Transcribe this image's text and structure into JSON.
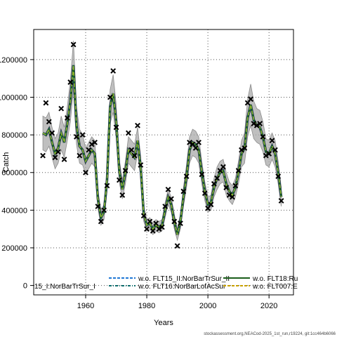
{
  "chart_data": {
    "type": "line",
    "xlabel": "Years",
    "ylabel": "Catch",
    "xlim": [
      1943,
      2028
    ],
    "ylim": [
      -50000,
      1360000
    ],
    "x_ticks": [
      1960,
      1980,
      2000,
      2020
    ],
    "y_ticks": [
      0,
      200000,
      400000,
      600000,
      800000,
      1000000,
      1200000
    ],
    "y_tick_labels": [
      "0",
      "200000",
      "400000",
      "600000",
      "800000",
      "1000000",
      "1200000"
    ],
    "grid": true,
    "legend_position": "bottom",
    "legend": [
      {
        "label": "15_I:NorBarTrSur_I",
        "color": "#1a1a1a",
        "style": "dotted"
      },
      {
        "label": "w.o. FLT15_II:NorBarTrSur_II",
        "color": "#1f77d4",
        "style": "dashed"
      },
      {
        "label": "w.o. FLT16:NorBarLofAcSur",
        "color": "#0d6e6e",
        "style": "dashdot"
      },
      {
        "label": "w.o. FLT18:Ru",
        "color": "#1a5e1a",
        "style": "solid"
      },
      {
        "label": "w.o. FLT007:E",
        "color": "#c8a000",
        "style": "dashed"
      }
    ],
    "observed": {
      "x": [
        1946,
        1947,
        1948,
        1949,
        1950,
        1951,
        1952,
        1953,
        1954,
        1955,
        1956,
        1957,
        1958,
        1959,
        1960,
        1961,
        1962,
        1963,
        1964,
        1965,
        1966,
        1967,
        1968,
        1969,
        1970,
        1971,
        1972,
        1973,
        1974,
        1975,
        1976,
        1977,
        1978,
        1979,
        1980,
        1981,
        1982,
        1983,
        1984,
        1985,
        1986,
        1987,
        1988,
        1989,
        1990,
        1991,
        1992,
        1993,
        1994,
        1995,
        1996,
        1997,
        1998,
        1999,
        2000,
        2001,
        2002,
        2003,
        2004,
        2005,
        2006,
        2007,
        2008,
        2009,
        2010,
        2011,
        2012,
        2013,
        2014,
        2015,
        2016,
        2017,
        2018,
        2019,
        2020,
        2021,
        2022,
        2023,
        2024
      ],
      "y": [
        690000,
        970000,
        870000,
        810000,
        680000,
        710000,
        940000,
        670000,
        890000,
        1080000,
        1280000,
        790000,
        690000,
        800000,
        600000,
        720000,
        750000,
        760000,
        420000,
        340000,
        400000,
        530000,
        1000000,
        1140000,
        840000,
        560000,
        480000,
        610000,
        810000,
        720000,
        690000,
        850000,
        640000,
        370000,
        300000,
        340000,
        290000,
        330000,
        300000,
        310000,
        420000,
        510000,
        460000,
        340000,
        210000,
        330000,
        500000,
        580000,
        760000,
        750000,
        730000,
        760000,
        590000,
        490000,
        410000,
        430000,
        540000,
        570000,
        610000,
        630000,
        520000,
        480000,
        470000,
        530000,
        610000,
        720000,
        730000,
        970000,
        990000,
        860000,
        850000,
        860000,
        790000,
        690000,
        700000,
        770000,
        720000,
        580000,
        450000
      ]
    },
    "fitted": {
      "x": [
        1946,
        1947,
        1948,
        1949,
        1950,
        1951,
        1952,
        1953,
        1954,
        1955,
        1956,
        1957,
        1958,
        1959,
        1960,
        1961,
        1962,
        1963,
        1964,
        1965,
        1966,
        1967,
        1968,
        1969,
        1970,
        1971,
        1972,
        1973,
        1974,
        1975,
        1976,
        1977,
        1978,
        1979,
        1980,
        1981,
        1982,
        1983,
        1984,
        1985,
        1986,
        1987,
        1988,
        1989,
        1990,
        1991,
        1992,
        1993,
        1994,
        1995,
        1996,
        1997,
        1998,
        1999,
        2000,
        2001,
        2002,
        2003,
        2004,
        2005,
        2006,
        2007,
        2008,
        2009,
        2010,
        2011,
        2012,
        2013,
        2014,
        2015,
        2016,
        2017,
        2018,
        2019,
        2020,
        2021,
        2022,
        2023,
        2024
      ],
      "y": [
        810000,
        800000,
        830000,
        760000,
        700000,
        730000,
        810000,
        760000,
        860000,
        980000,
        1170000,
        850000,
        740000,
        720000,
        660000,
        690000,
        720000,
        700000,
        460000,
        360000,
        390000,
        560000,
        950000,
        1020000,
        870000,
        610000,
        510000,
        600000,
        720000,
        700000,
        680000,
        770000,
        630000,
        380000,
        320000,
        330000,
        300000,
        320000,
        310000,
        320000,
        400000,
        470000,
        430000,
        340000,
        270000,
        340000,
        470000,
        580000,
        720000,
        760000,
        750000,
        720000,
        600000,
        500000,
        430000,
        440000,
        520000,
        570000,
        600000,
        610000,
        540000,
        500000,
        480000,
        520000,
        600000,
        700000,
        730000,
        890000,
        960000,
        880000,
        850000,
        840000,
        790000,
        710000,
        700000,
        740000,
        700000,
        600000,
        470000
      ]
    },
    "band_half_width": [
      90000,
      90000,
      90000,
      80000,
      80000,
      80000,
      90000,
      80000,
      90000,
      110000,
      130000,
      100000,
      90000,
      80000,
      70000,
      70000,
      70000,
      70000,
      50000,
      40000,
      40000,
      60000,
      90000,
      100000,
      90000,
      60000,
      50000,
      60000,
      70000,
      70000,
      70000,
      70000,
      60000,
      40000,
      30000,
      30000,
      30000,
      30000,
      30000,
      30000,
      40000,
      40000,
      40000,
      40000,
      30000,
      40000,
      50000,
      60000,
      70000,
      70000,
      70000,
      70000,
      60000,
      50000,
      40000,
      40000,
      50000,
      60000,
      60000,
      60000,
      60000,
      50000,
      50000,
      50000,
      60000,
      70000,
      80000,
      100000,
      110000,
      100000,
      90000,
      90000,
      80000,
      70000,
      70000,
      70000,
      70000,
      60000,
      50000
    ]
  },
  "footer": "stockassessment.org,NEACod-2025_1st_run,r19224, git:1cc464b6066"
}
